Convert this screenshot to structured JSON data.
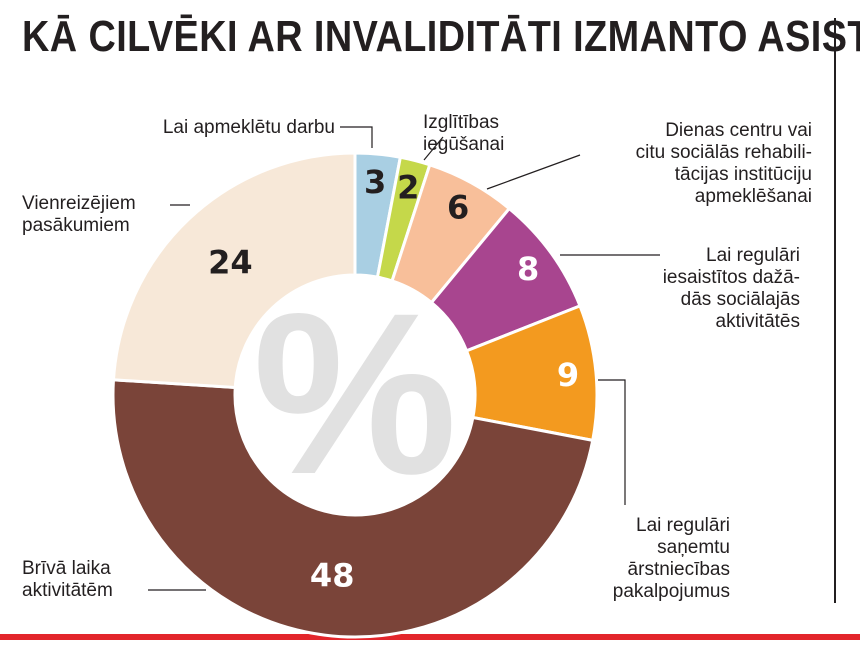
{
  "chart_data": {
    "type": "pie",
    "variant": "donut",
    "title": "KĀ CILVĒKI AR INVALIDITĀTI IZMANTO ASISTENTA PAKALPOJUMU?",
    "unit": "%",
    "center_symbol": "%",
    "slices": [
      {
        "label": "Lai apmeklētu darbu",
        "value": 3,
        "color": "#a9cfe3",
        "text_color": "#231f20"
      },
      {
        "label": "Izglītības iegūšanai",
        "value": 2,
        "color": "#c5d84a",
        "text_color": "#231f20"
      },
      {
        "label": "Dienas centru vai citu sociālās rehabili-tācijas institūciju apmeklēšanai",
        "value": 6,
        "color": "#f8bf9a",
        "text_color": "#231f20"
      },
      {
        "label": "Lai regulāri iesaistītos dažā-dās sociālajās aktivitātēs",
        "value": 8,
        "color": "#a8458f",
        "text_color": "#ffffff"
      },
      {
        "label": "Lai regulāri saņemtu ārstniecības pakalpojumus",
        "value": 9,
        "color": "#f39a1f",
        "text_color": "#ffffff"
      },
      {
        "label": "Brīvā laika aktivitātēm",
        "value": 48,
        "color": "#7a4439",
        "text_color": "#ffffff"
      },
      {
        "label": "Vienreizējiem pasākumiem",
        "value": 24,
        "color": "#f7e8d8",
        "text_color": "#231f20"
      }
    ],
    "label_lines": [
      [
        "Lai apmeklētu darbu"
      ],
      [
        "Izglītības",
        "iegūšanai"
      ],
      [
        "Dienas centru vai",
        "citu sociālās rehabili-",
        "tācijas institūciju",
        "apmeklēšanai"
      ],
      [
        "Lai regulāri",
        "iesaistītos dažā-",
        "dās sociālajās",
        "aktivitātēs"
      ],
      [
        "Lai regulāri",
        "saņemtu",
        "ārstniecības",
        "pakalpojumus"
      ],
      [
        "Brīvā laika",
        "aktivitātēm"
      ],
      [
        "Vienreizējiem",
        "pasākumiem"
      ]
    ]
  },
  "accent_color": "#e3262b"
}
